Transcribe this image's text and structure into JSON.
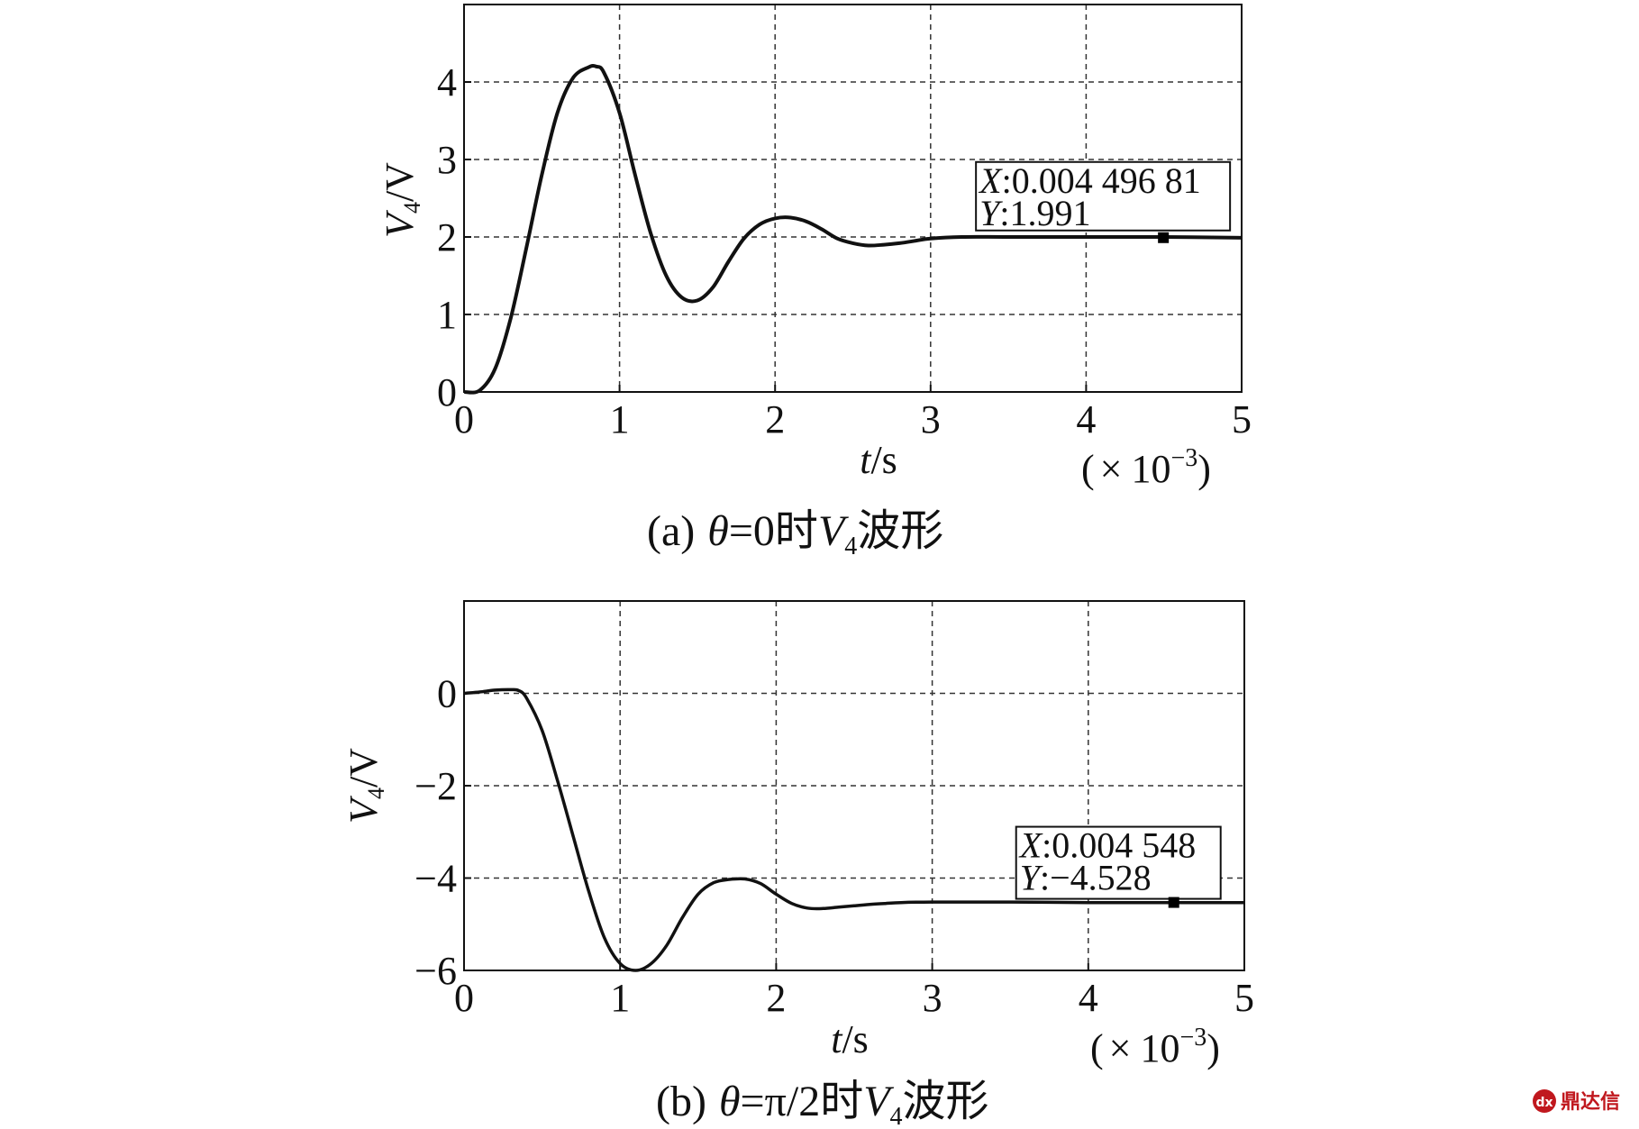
{
  "chart_data": [
    {
      "type": "line",
      "panel_caption": {
        "prefix": "(a)",
        "theta": "θ",
        "rest": "=0时",
        "v": "V",
        "sub": "4",
        "suffix": "波形"
      },
      "ylabel": {
        "v": "V",
        "sub": "4",
        "unit": "/V"
      },
      "xlabel": {
        "t": "t",
        "unit": "/s"
      },
      "x_multiplier": {
        "open": "(",
        "times": "×",
        "base": "10",
        "exp": "−3",
        "close": ")"
      },
      "xlim": [
        0,
        5
      ],
      "ylim": [
        0,
        5
      ],
      "xticks": [
        0,
        1,
        2,
        3,
        4,
        5
      ],
      "yticks": [
        0,
        1,
        2,
        3,
        4
      ],
      "xtick_labels": [
        "0",
        "1",
        "2",
        "3",
        "4",
        "5"
      ],
      "ytick_labels": [
        "0",
        "1",
        "2",
        "3",
        "4"
      ],
      "grid": true,
      "series": [
        {
          "x": [
            0,
            0.1,
            0.2,
            0.3,
            0.4,
            0.5,
            0.6,
            0.7,
            0.8,
            0.85,
            0.9,
            1.0,
            1.1,
            1.2,
            1.3,
            1.4,
            1.5,
            1.6,
            1.7,
            1.8,
            1.9,
            2.0,
            2.1,
            2.2,
            2.3,
            2.4,
            2.5,
            2.6,
            2.7,
            2.8,
            2.9,
            3.0,
            3.2,
            3.5,
            4.0,
            4.5,
            5.0
          ],
          "y": [
            0,
            0.02,
            0.3,
            0.95,
            1.85,
            2.8,
            3.6,
            4.05,
            4.19,
            4.2,
            4.12,
            3.6,
            2.8,
            2.05,
            1.5,
            1.22,
            1.18,
            1.35,
            1.68,
            1.98,
            2.16,
            2.24,
            2.25,
            2.2,
            2.1,
            1.98,
            1.92,
            1.89,
            1.9,
            1.92,
            1.95,
            1.98,
            2.0,
            2.0,
            2.0,
            2.0,
            1.99
          ]
        }
      ],
      "annotation": {
        "x_key": "X",
        "x_value": ":0.004 496 81",
        "y_key": "Y",
        "y_value": ":1.991",
        "marker_x": 4.4968,
        "marker_y": 1.991
      }
    },
    {
      "type": "line",
      "panel_caption": {
        "prefix": "(b)",
        "theta": "θ",
        "rest": "=π/2时",
        "v": "V",
        "sub": "4",
        "suffix": "波形"
      },
      "ylabel": {
        "v": "V",
        "sub": "4",
        "unit": "/V"
      },
      "xlabel": {
        "t": "t",
        "unit": "/s"
      },
      "x_multiplier": {
        "open": "(",
        "times": "×",
        "base": "10",
        "exp": "−3",
        "close": ")"
      },
      "xlim": [
        0,
        5
      ],
      "ylim": [
        -6,
        2
      ],
      "xticks": [
        0,
        1,
        2,
        3,
        4,
        5
      ],
      "yticks": [
        -6,
        -4,
        -2,
        0
      ],
      "xtick_labels": [
        "0",
        "1",
        "2",
        "3",
        "4",
        "5"
      ],
      "ytick_labels": [
        "−6",
        "−4",
        "−2",
        "0"
      ],
      "grid": true,
      "series": [
        {
          "x": [
            0,
            0.1,
            0.2,
            0.3,
            0.35,
            0.4,
            0.5,
            0.6,
            0.7,
            0.8,
            0.9,
            1.0,
            1.1,
            1.2,
            1.3,
            1.4,
            1.5,
            1.6,
            1.7,
            1.8,
            1.9,
            2.0,
            2.1,
            2.2,
            2.3,
            2.4,
            2.5,
            2.6,
            2.7,
            2.8,
            3.0,
            3.5,
            4.0,
            4.5,
            5.0
          ],
          "y": [
            0,
            0.03,
            0.07,
            0.08,
            0.06,
            -0.1,
            -0.8,
            -1.9,
            -3.1,
            -4.3,
            -5.3,
            -5.85,
            -6.0,
            -5.85,
            -5.45,
            -4.85,
            -4.35,
            -4.1,
            -4.03,
            -4.02,
            -4.12,
            -4.35,
            -4.55,
            -4.65,
            -4.66,
            -4.63,
            -4.6,
            -4.57,
            -4.55,
            -4.53,
            -4.52,
            -4.52,
            -4.53,
            -4.53,
            -4.53
          ]
        }
      ],
      "annotation": {
        "x_key": "X",
        "x_value": ":0.004 548",
        "y_key": "Y",
        "y_value": ":−4.528",
        "marker_x": 4.548,
        "marker_y": -4.528
      }
    }
  ],
  "watermark": {
    "logo": "dx",
    "text": "鼎达信"
  },
  "colors": {
    "line": "#111111",
    "grid": "#333333",
    "axis": "#111111",
    "watermark": "#c0181e"
  }
}
